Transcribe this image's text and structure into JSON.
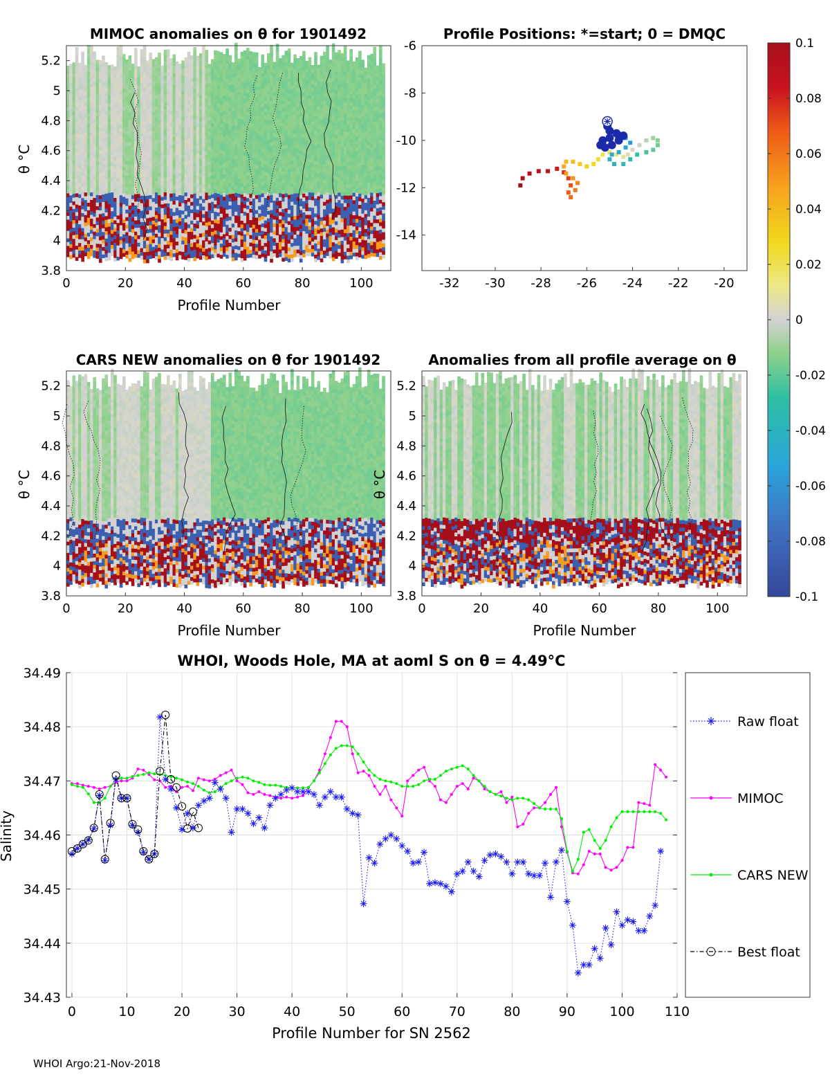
{
  "panels": {
    "mimoc": {
      "title": "MIMOC anomalies on θ  for 1901492",
      "xlabel": "Profile Number",
      "ylabel": "θ °C"
    },
    "positions": {
      "title": "Profile Positions: *=start; 0 = DMQC"
    },
    "cars": {
      "title": "CARS NEW anomalies on θ for 1901492",
      "xlabel": "Profile Number",
      "ylabel": "θ °C"
    },
    "avg": {
      "title": "Anomalies from all profile average on θ",
      "xlabel": "Profile Number",
      "ylabel": "θ °C"
    }
  },
  "colorbar": {
    "ticks": [
      "0.1",
      "0.08",
      "0.06",
      "0.04",
      "0.02",
      "0",
      "-0.02",
      "-0.04",
      "-0.06",
      "-0.08",
      "-0.1"
    ],
    "range": [
      -0.1,
      0.1
    ]
  },
  "anomaly_axes": {
    "x_ticks": [
      "0",
      "20",
      "40",
      "60",
      "80",
      "100"
    ],
    "xlim": [
      0,
      110
    ],
    "y_ticks": [
      "3.8",
      "4",
      "4.2",
      "4.4",
      "4.6",
      "4.8",
      "5",
      "5.2"
    ],
    "ylim": [
      3.8,
      5.3
    ]
  },
  "positions_axes": {
    "x_ticks": [
      "-32",
      "-30",
      "-28",
      "-26",
      "-24",
      "-22",
      "-20"
    ],
    "xlim": [
      -33.2,
      -19
    ],
    "y_ticks": [
      "-6",
      "-8",
      "-10",
      "-12",
      "-14"
    ],
    "ylim": [
      -15.5,
      -6
    ]
  },
  "chart_data": {
    "type": "line",
    "title": "WHOI, Woods Hole, MA at aoml S on θ = 4.49°C",
    "xlabel": "Profile Number for SN 2562",
    "ylabel": "Salinity",
    "xlim": [
      -1,
      110
    ],
    "ylim": [
      34.43,
      34.49
    ],
    "x_ticks": [
      "0",
      "10",
      "20",
      "30",
      "40",
      "50",
      "60",
      "70",
      "80",
      "90",
      "100",
      "110"
    ],
    "y_ticks": [
      "34.43",
      "34.44",
      "34.45",
      "34.46",
      "34.47",
      "34.48",
      "34.49"
    ],
    "legend": [
      "Raw float",
      "MIMOC",
      "CARS NEW",
      "Best float"
    ],
    "series": [
      {
        "name": "Raw float",
        "color": "#1a1aff",
        "values": [
          34.4565,
          34.4575,
          34.4583,
          34.4591,
          34.4612,
          34.4673,
          34.4553,
          34.4618,
          34.4703,
          34.4668,
          34.4668,
          34.4618,
          34.4605,
          34.4568,
          34.4555,
          34.4565,
          34.4818,
          34.4703,
          34.4685,
          34.465,
          34.461,
          34.464,
          34.4613,
          34.4655,
          34.4663,
          34.4668,
          34.4697,
          34.4685,
          34.4668,
          34.4605,
          34.4648,
          34.4648,
          34.464,
          34.4621,
          34.4632,
          34.4613,
          34.4655,
          34.4668,
          34.4675,
          34.4683,
          34.4687,
          34.468,
          34.468,
          34.468,
          34.4675,
          34.4655,
          34.467,
          34.468,
          34.467,
          34.467,
          34.4648,
          34.464,
          34.4637,
          34.4473,
          34.4558,
          34.4548,
          34.4583,
          34.4593,
          34.46,
          34.4593,
          34.458,
          34.457,
          34.4548,
          34.455,
          34.4568,
          34.451,
          34.4512,
          34.451,
          34.4505,
          34.4495,
          34.4528,
          34.4533,
          34.455,
          34.4533,
          34.4523,
          34.4553,
          34.4563,
          34.4565,
          34.456,
          34.455,
          34.4528,
          34.455,
          34.455,
          34.4528,
          34.4525,
          34.4525,
          34.4548,
          34.4485,
          34.455,
          34.4572,
          34.4477,
          34.4433,
          34.4345,
          34.436,
          34.436,
          34.439,
          34.4372,
          34.4428,
          34.4397,
          34.4458,
          34.4433,
          34.4443,
          34.444,
          34.4423,
          34.4423,
          34.445,
          34.447,
          34.457
        ]
      },
      {
        "name": "MIMOC",
        "color": "#ff00ff",
        "values": [
          34.4695,
          34.4695,
          34.4692,
          34.469,
          34.4688,
          34.4685,
          34.4688,
          34.469,
          34.4698,
          34.47,
          34.47,
          34.4705,
          34.4722,
          34.472,
          34.4712,
          34.4702,
          34.47,
          34.4688,
          34.469,
          34.468,
          34.4688,
          34.469,
          34.4682,
          34.4705,
          34.4702,
          34.47,
          34.4703,
          34.471,
          34.4715,
          34.472,
          34.47,
          34.4693,
          34.4678,
          34.4675,
          34.468,
          34.4675,
          34.4673,
          34.467,
          34.4668,
          34.467,
          34.4668,
          34.467,
          34.4673,
          34.4688,
          34.47,
          34.472,
          34.475,
          34.478,
          34.481,
          34.481,
          34.48,
          34.475,
          34.4715,
          34.4718,
          34.471,
          34.469,
          34.4675,
          34.469,
          34.4665,
          34.465,
          34.4635,
          34.47,
          34.471,
          34.472,
          34.4725,
          34.47,
          34.469,
          34.4665,
          34.466,
          34.4675,
          34.469,
          34.4695,
          34.4685,
          34.4705,
          34.47,
          34.4685,
          34.468,
          34.4675,
          34.468,
          34.466,
          34.467,
          34.4615,
          34.462,
          34.464,
          34.465,
          34.465,
          34.466,
          34.4675,
          34.4688,
          34.4615,
          34.4568,
          34.453,
          34.4528,
          34.4545,
          34.457,
          34.4565,
          34.4565,
          34.454,
          34.4535,
          34.454,
          34.4553,
          34.4577,
          34.4577,
          34.466,
          34.4658,
          34.4655,
          34.473,
          34.472,
          34.4707
        ]
      },
      {
        "name": "CARS NEW",
        "color": "#00ee00",
        "values": [
          34.4693,
          34.469,
          34.4688,
          34.4676,
          34.466,
          34.466,
          34.4668,
          34.469,
          34.4703,
          34.4705,
          34.4705,
          34.4708,
          34.471,
          34.4712,
          34.4715,
          34.4713,
          34.4712,
          34.471,
          34.4708,
          34.4705,
          34.4702,
          34.4698,
          34.4695,
          34.469,
          34.4683,
          34.4678,
          34.468,
          34.4688,
          34.4695,
          34.47,
          34.4705,
          34.4707,
          34.4705,
          34.47,
          34.4697,
          34.4693,
          34.4692,
          34.4692,
          34.469,
          34.4688,
          34.4687,
          34.4687,
          34.4687,
          34.4688,
          34.47,
          34.4715,
          34.4732,
          34.4748,
          34.476,
          34.4765,
          34.4765,
          34.4763,
          34.475,
          34.4735,
          34.472,
          34.471,
          34.4703,
          34.47,
          34.4698,
          34.4695,
          34.469,
          34.469,
          34.469,
          34.4693,
          34.47,
          34.4703,
          34.4703,
          34.471,
          34.4718,
          34.4722,
          34.4725,
          34.4728,
          34.4722,
          34.471,
          34.47,
          34.469,
          34.468,
          34.4675,
          34.4672,
          34.4668,
          34.4665,
          34.4668,
          34.4668,
          34.4665,
          34.4658,
          34.465,
          34.4648,
          34.4648,
          34.4648,
          34.463,
          34.457,
          34.4533,
          34.4555,
          34.4605,
          34.461,
          34.459,
          34.4575,
          34.459,
          34.4615,
          34.4632,
          34.4643,
          34.4643,
          34.4643,
          34.4643,
          34.4643,
          34.4643,
          34.4643,
          34.464,
          34.4628
        ]
      },
      {
        "name": "Best float",
        "color": "#000000",
        "values": [
          34.457,
          34.4575,
          34.4583,
          34.459,
          34.4613,
          34.4675,
          34.4555,
          34.4622,
          34.471,
          34.4668,
          34.4668,
          34.462,
          34.461,
          34.457,
          34.4555,
          34.4565,
          34.4718,
          34.4822,
          34.4703,
          34.4688,
          34.4653,
          34.4612,
          34.4643,
          34.4613,
          null,
          null,
          null,
          null,
          null,
          null,
          null,
          null,
          null,
          null,
          null,
          null,
          null,
          null,
          null,
          null,
          null,
          null,
          null,
          null,
          null,
          null,
          null,
          null,
          null,
          null,
          null,
          null,
          null,
          null,
          null,
          null,
          null,
          null,
          null,
          null,
          null,
          null,
          null,
          null,
          null,
          null,
          null,
          null,
          null,
          null,
          null,
          null,
          null,
          null,
          null,
          null,
          null,
          null,
          null,
          null,
          null,
          null,
          null,
          null,
          null,
          null,
          null,
          null,
          null,
          null,
          null,
          null,
          null,
          null,
          null,
          null,
          null,
          null,
          null,
          null,
          null,
          null,
          null,
          null,
          null,
          null,
          null,
          null
        ]
      }
    ]
  },
  "footer": "WHOI Argo:21-Nov-2018"
}
